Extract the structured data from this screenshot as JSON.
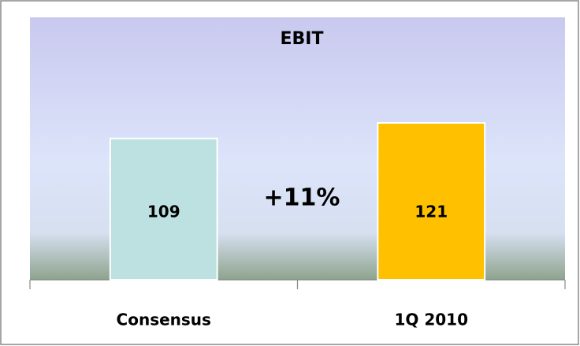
{
  "chart_data": {
    "type": "bar",
    "title": "EBIT",
    "categories": [
      "Consensus",
      "1Q 2010"
    ],
    "values": [
      109,
      121
    ],
    "colors": [
      "#bde0e0",
      "#ffc000"
    ],
    "annotation": "+11%",
    "ylim": [
      0,
      200
    ]
  }
}
